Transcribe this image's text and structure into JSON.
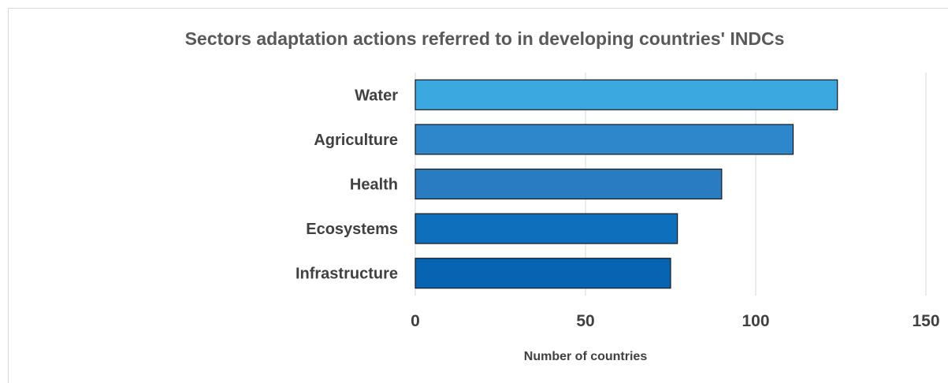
{
  "chart_data": {
    "type": "bar",
    "orientation": "horizontal",
    "title": "Sectors adaptation actions referred to in developing countries' INDCs",
    "xlabel": "Number of countries",
    "ylabel": "",
    "categories": [
      "Water",
      "Agriculture",
      "Health",
      "Ecosystems",
      "Infrastructure"
    ],
    "values": [
      124,
      111,
      90,
      77,
      75
    ],
    "xlim": [
      0,
      150
    ],
    "xticks": [
      "0",
      "50",
      "100",
      "150"
    ],
    "grid": true,
    "legend": "none",
    "colors": [
      "#3ca8e0",
      "#2e86cb",
      "#2a7cc2",
      "#0e6fbd",
      "#0664b2"
    ]
  }
}
